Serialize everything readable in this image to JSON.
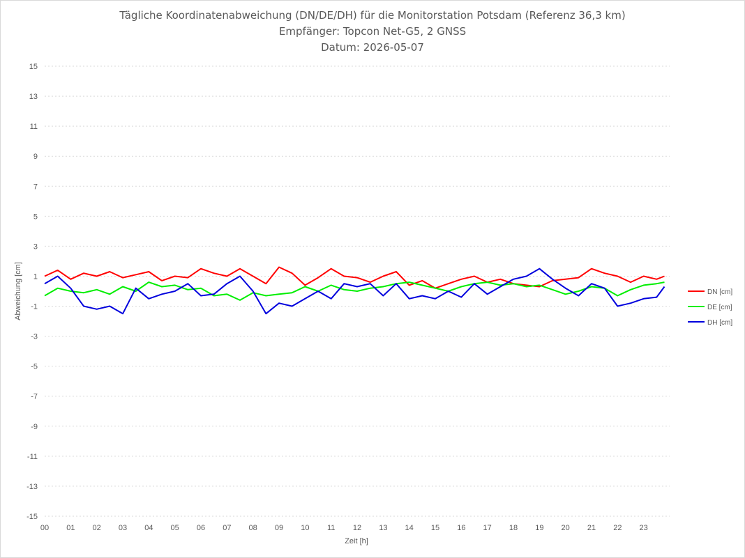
{
  "chart_data": {
    "type": "line",
    "title": [
      "Tägliche Koordinatenabweichung (DN/DE/DH) für die Monitorstation Potsdam (Referenz 36,3 km)",
      "Empfänger: Topcon Net-G5, 2 GNSS",
      "Datum: 2026-05-07"
    ],
    "xlabel": "Zeit [h]",
    "ylabel": "Abweichung [cm]",
    "xlim": [
      0,
      24
    ],
    "ylim": [
      -15,
      15
    ],
    "xticks": [
      "00",
      "01",
      "02",
      "03",
      "04",
      "05",
      "06",
      "07",
      "08",
      "09",
      "10",
      "11",
      "12",
      "13",
      "14",
      "15",
      "16",
      "17",
      "18",
      "19",
      "20",
      "21",
      "22",
      "23"
    ],
    "yticks": [
      15,
      13,
      11,
      9,
      7,
      5,
      3,
      1,
      -1,
      -3,
      -5,
      -7,
      -9,
      -11,
      -13,
      -15
    ],
    "grid": "horizontal dotted",
    "legend_position": "right",
    "series": [
      {
        "name": "DN [cm]",
        "color": "#ff0000",
        "x": [
          0.0,
          0.5,
          1.0,
          1.5,
          2.0,
          2.5,
          3.0,
          3.5,
          4.0,
          4.5,
          5.0,
          5.5,
          6.0,
          6.5,
          7.0,
          7.5,
          8.0,
          8.5,
          9.0,
          9.5,
          10.0,
          10.5,
          11.0,
          11.5,
          12.0,
          12.5,
          13.0,
          13.5,
          14.0,
          14.5,
          15.0,
          15.5,
          16.0,
          16.5,
          17.0,
          17.5,
          18.0,
          18.5,
          19.0,
          19.5,
          20.0,
          20.5,
          21.0,
          21.5,
          22.0,
          22.5,
          23.0,
          23.5,
          23.8
        ],
        "y": [
          1.0,
          1.4,
          0.8,
          1.2,
          1.0,
          1.3,
          0.9,
          1.1,
          1.3,
          0.7,
          1.0,
          0.9,
          1.5,
          1.2,
          1.0,
          1.5,
          1.0,
          0.5,
          1.6,
          1.2,
          0.4,
          0.9,
          1.5,
          1.0,
          0.9,
          0.6,
          1.0,
          1.3,
          0.4,
          0.7,
          0.2,
          0.5,
          0.8,
          1.0,
          0.6,
          0.8,
          0.5,
          0.4,
          0.3,
          0.7,
          0.8,
          0.9,
          1.5,
          1.2,
          1.0,
          0.6,
          1.0,
          0.8,
          1.0
        ]
      },
      {
        "name": "DE [cm]",
        "color": "#00ee00",
        "x": [
          0.0,
          0.5,
          1.0,
          1.5,
          2.0,
          2.5,
          3.0,
          3.5,
          4.0,
          4.5,
          5.0,
          5.5,
          6.0,
          6.5,
          7.0,
          7.5,
          8.0,
          8.5,
          9.0,
          9.5,
          10.0,
          10.5,
          11.0,
          11.5,
          12.0,
          12.5,
          13.0,
          13.5,
          14.0,
          14.5,
          15.0,
          15.5,
          16.0,
          16.5,
          17.0,
          17.5,
          18.0,
          18.5,
          19.0,
          19.5,
          20.0,
          20.5,
          21.0,
          21.5,
          22.0,
          22.5,
          23.0,
          23.5,
          23.8
        ],
        "y": [
          -0.3,
          0.2,
          0.0,
          -0.1,
          0.1,
          -0.2,
          0.3,
          0.0,
          0.6,
          0.3,
          0.4,
          0.1,
          0.2,
          -0.3,
          -0.2,
          -0.6,
          -0.1,
          -0.3,
          -0.2,
          -0.1,
          0.3,
          0.0,
          0.4,
          0.1,
          0.0,
          0.2,
          0.3,
          0.5,
          0.6,
          0.4,
          0.2,
          0.0,
          0.3,
          0.5,
          0.6,
          0.4,
          0.5,
          0.3,
          0.4,
          0.1,
          -0.2,
          0.0,
          0.3,
          0.2,
          -0.3,
          0.1,
          0.4,
          0.5,
          0.6
        ]
      },
      {
        "name": "DH [cm]",
        "color": "#0000dd",
        "x": [
          0.0,
          0.5,
          1.0,
          1.5,
          2.0,
          2.5,
          3.0,
          3.5,
          4.0,
          4.5,
          5.0,
          5.5,
          6.0,
          6.5,
          7.0,
          7.5,
          8.0,
          8.5,
          9.0,
          9.5,
          10.0,
          10.5,
          11.0,
          11.5,
          12.0,
          12.5,
          13.0,
          13.5,
          14.0,
          14.5,
          15.0,
          15.5,
          16.0,
          16.5,
          17.0,
          17.5,
          18.0,
          18.5,
          19.0,
          19.5,
          20.0,
          20.5,
          21.0,
          21.5,
          22.0,
          22.5,
          23.0,
          23.5,
          23.8
        ],
        "y": [
          0.5,
          1.0,
          0.2,
          -1.0,
          -1.2,
          -1.0,
          -1.5,
          0.2,
          -0.5,
          -0.2,
          0.0,
          0.5,
          -0.3,
          -0.2,
          0.5,
          1.0,
          0.0,
          -1.5,
          -0.8,
          -1.0,
          -0.5,
          0.0,
          -0.5,
          0.5,
          0.3,
          0.5,
          -0.3,
          0.5,
          -0.5,
          -0.3,
          -0.5,
          0.0,
          -0.4,
          0.5,
          -0.2,
          0.3,
          0.8,
          1.0,
          1.5,
          0.8,
          0.2,
          -0.3,
          0.5,
          0.2,
          -1.0,
          -0.8,
          -0.5,
          -0.4,
          0.3
        ]
      }
    ]
  }
}
